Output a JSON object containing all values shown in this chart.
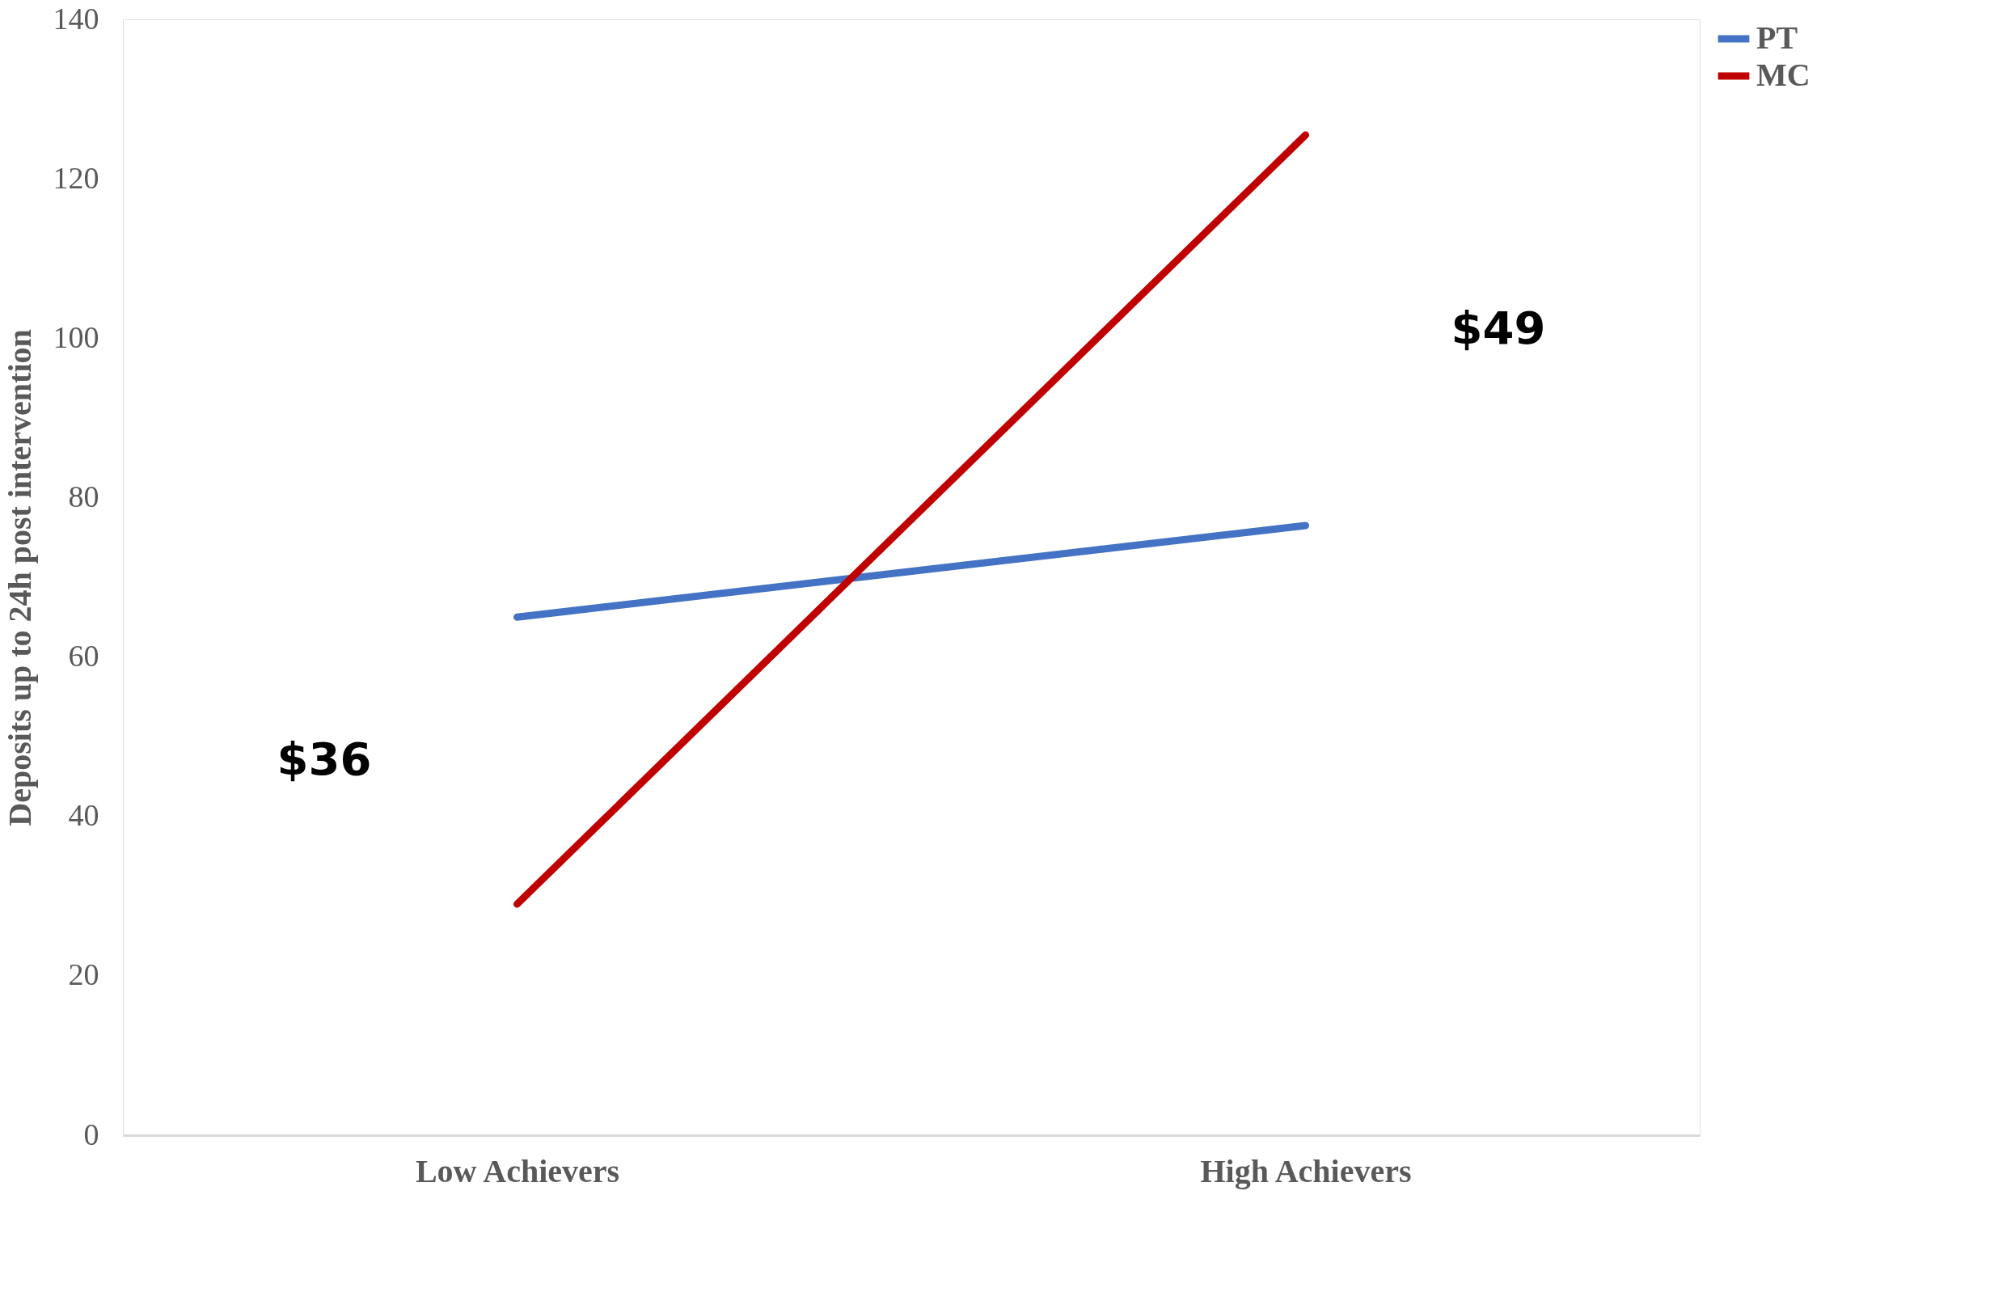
{
  "chart_data": {
    "type": "line",
    "ylabel": "Deposits up to 24h post intervention",
    "categories": [
      "Low Achievers",
      "High Achievers"
    ],
    "series": [
      {
        "name": "PT",
        "color": "#4472c4",
        "values": [
          65,
          76.5
        ]
      },
      {
        "name": "MC",
        "color": "#c00000",
        "values": [
          29,
          125.5
        ]
      }
    ],
    "ylim": [
      0,
      140
    ],
    "yticks": [
      0,
      20,
      40,
      60,
      80,
      100,
      120,
      140
    ],
    "grid": false,
    "legend": "right",
    "marker": "none",
    "line_style": "solid",
    "annotations": [
      "$36",
      "$49"
    ]
  }
}
